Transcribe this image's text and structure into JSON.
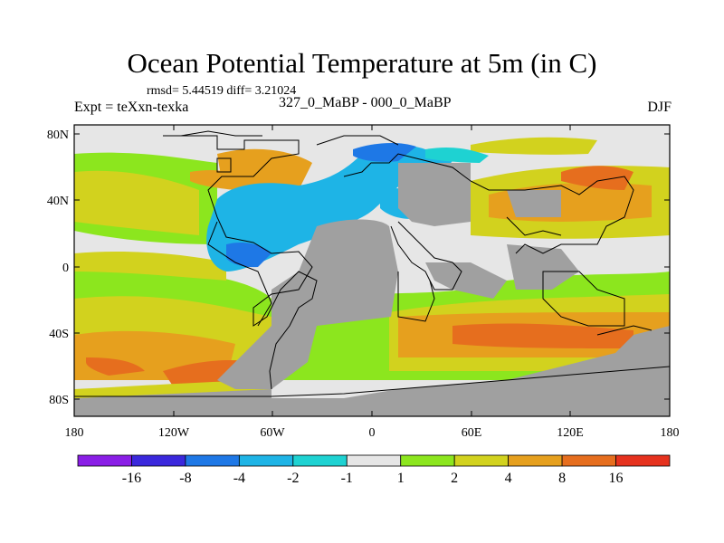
{
  "title": "Ocean Potential Temperature at 5m (in C)",
  "stats": "rmsd= 5.44519 diff= 3.21024",
  "left_string": "Expt = teXxn-texka",
  "center_string": "327_0_MaBP - 000_0_MaBP",
  "right_string": "DJF",
  "y_ticks": [
    "80N",
    "40N",
    "0",
    "40S",
    "80S"
  ],
  "x_ticks": [
    "180",
    "120W",
    "60W",
    "0",
    "60E",
    "120E",
    "180"
  ],
  "colorbar": {
    "colors": [
      "#8a1ee6",
      "#3a28dc",
      "#1e78e6",
      "#1eb4e6",
      "#1ed2d2",
      "#e6e6e6",
      "#8ce61e",
      "#d2d21e",
      "#e6a01e",
      "#e66e1e",
      "#e6321e"
    ],
    "labels": [
      "-16",
      "-8",
      "-4",
      "-2",
      "-1",
      "1",
      "2",
      "4",
      "8",
      "16"
    ]
  },
  "colors": {
    "land": "#a0a0a0",
    "frame": "#000000"
  }
}
